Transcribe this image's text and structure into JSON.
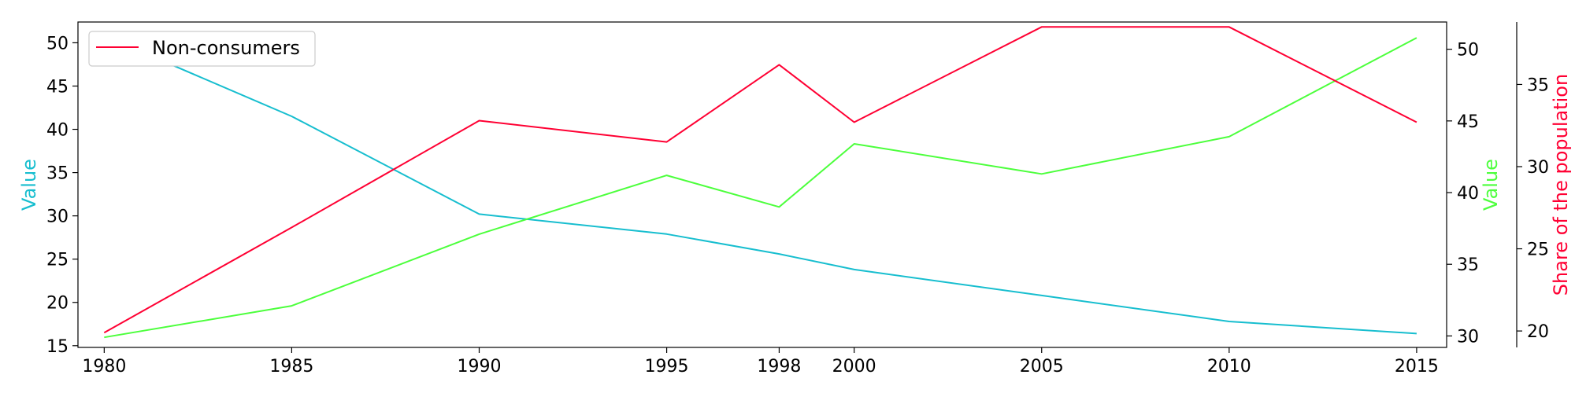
{
  "chart_data": {
    "type": "line",
    "x": [
      1980,
      1985,
      1990,
      1995,
      1998,
      2000,
      2005,
      2010,
      2015
    ],
    "x_ticks": [
      1980,
      1985,
      1990,
      1995,
      1998,
      2000,
      2005,
      2010,
      2015
    ],
    "series": [
      {
        "axis": "left",
        "color": "#17becf",
        "values": [
          50.8,
          41.5,
          30.2,
          27.9,
          25.6,
          23.8,
          20.8,
          17.8,
          16.4
        ]
      },
      {
        "axis": "right1",
        "color": "#4cff3c",
        "values": [
          29.9,
          32.1,
          37.1,
          41.2,
          39.0,
          43.4,
          41.3,
          43.9,
          50.8
        ]
      },
      {
        "name": "Non-consumers",
        "axis": "right2",
        "color": "#ff0033",
        "values": [
          19.9,
          26.3,
          32.8,
          31.5,
          36.2,
          32.7,
          38.5,
          38.5,
          32.7
        ]
      }
    ],
    "axes": {
      "left": {
        "label": "Value",
        "color": "#17becf",
        "ylim": [
          14.8,
          52.4
        ],
        "ticks": [
          15,
          20,
          25,
          30,
          35,
          40,
          45,
          50
        ]
      },
      "right1": {
        "label": "Value",
        "color": "#4cff3c",
        "ylim": [
          29.2,
          51.9
        ],
        "ticks": [
          30,
          35,
          40,
          45,
          50
        ]
      },
      "right2": {
        "label": "Share of the population",
        "color": "#ff0033",
        "ylim": [
          19.0,
          38.8
        ],
        "ticks": [
          20,
          25,
          30,
          35
        ]
      }
    },
    "xlim": [
      1979.3,
      2015.8
    ],
    "legend": {
      "position": "top-left",
      "entries": [
        "Non-consumers"
      ]
    },
    "grid": false
  }
}
